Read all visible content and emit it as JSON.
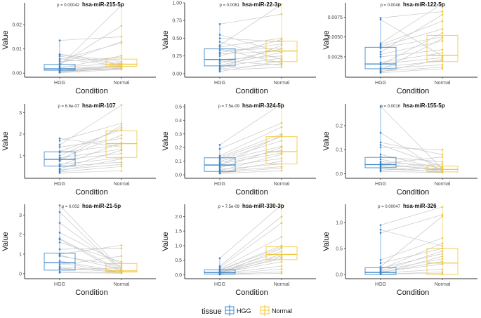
{
  "chart_data": {
    "type": "box",
    "layout": "3x3 faceted paired boxplots",
    "xlabel": "Condition",
    "ylabel": "Value",
    "categories": [
      "HGG",
      "Normal"
    ],
    "legend": {
      "title": "tissue",
      "placement": "bottom",
      "entries": [
        {
          "label": "HGG",
          "color": "#3a85c8"
        },
        {
          "label": "Normal",
          "color": "#f0c83c"
        }
      ]
    },
    "colors": {
      "HGG": "#3a85c8",
      "Normal": "#f0c83c",
      "pair_line": "#c8c8c8",
      "axis": "#333333"
    },
    "panels": [
      {
        "title": "hsa-miR-215-5p",
        "p_label": "p = 0.00042",
        "ylim": [
          -0.0008,
          0.029
        ],
        "yticks": [
          0.0,
          0.01,
          0.02
        ],
        "ytick_labels": [
          "0.00",
          "0.01",
          "0.02"
        ],
        "hgg": {
          "q1": 0.0012,
          "median": 0.0018,
          "q3": 0.0036
        },
        "normal": {
          "q1": 0.0028,
          "median": 0.0037,
          "q3": 0.0058
        },
        "pairs": [
          [
            0.0135,
            0.015
          ],
          [
            0.0078,
            0.0048
          ],
          [
            0.0075,
            0.004
          ],
          [
            0.007,
            0.0035
          ],
          [
            0.006,
            0.003
          ],
          [
            0.0055,
            0.0125
          ],
          [
            0.0048,
            0.0065
          ],
          [
            0.004,
            0.013
          ],
          [
            0.0036,
            0.0195
          ],
          [
            0.003,
            0.028
          ],
          [
            0.0025,
            0.004
          ],
          [
            0.002,
            0.0072
          ],
          [
            0.0018,
            0.003
          ],
          [
            0.0015,
            0.0025
          ],
          [
            0.0012,
            0.002
          ],
          [
            0.001,
            0.0035
          ],
          [
            0.0008,
            0.0018
          ],
          [
            0.0005,
            0.0028
          ],
          [
            0.0003,
            0.0022
          ],
          [
            0.0002,
            0.0015
          ]
        ]
      },
      {
        "title": "hsa-miR-22-3p",
        "p_label": "p = 0.0061",
        "ylim": [
          -0.02,
          1.0
        ],
        "yticks": [
          0,
          0.25,
          0.5,
          0.75,
          1.0
        ],
        "ytick_labels": [
          "0.00",
          "0.25",
          "0.50",
          "0.75",
          "1.00"
        ],
        "hgg": {
          "q1": 0.11,
          "median": 0.2,
          "q3": 0.35
        },
        "normal": {
          "q1": 0.17,
          "median": 0.32,
          "q3": 0.46
        },
        "pairs": [
          [
            0.7,
            0.84
          ],
          [
            0.55,
            0.3
          ],
          [
            0.5,
            0.45
          ],
          [
            0.45,
            0.2
          ],
          [
            0.4,
            0.98
          ],
          [
            0.38,
            0.5
          ],
          [
            0.35,
            0.15
          ],
          [
            0.33,
            0.36
          ],
          [
            0.3,
            0.42
          ],
          [
            0.28,
            0.32
          ],
          [
            0.25,
            0.48
          ],
          [
            0.2,
            0.25
          ],
          [
            0.18,
            0.12
          ],
          [
            0.15,
            0.35
          ],
          [
            0.12,
            0.3
          ],
          [
            0.1,
            0.22
          ],
          [
            0.08,
            0.4
          ],
          [
            0.07,
            0.14
          ],
          [
            0.05,
            0.09
          ],
          [
            0.03,
            0.18
          ]
        ]
      },
      {
        "title": "hsa-miR-122-5p",
        "p_label": "p = 0.0048",
        "ylim": [
          0.0002,
          0.0093
        ],
        "yticks": [
          0.0025,
          0.005,
          0.0075
        ],
        "ytick_labels": [
          "0.0025",
          "0.0050",
          "0.0075"
        ],
        "hgg": {
          "q1": 0.001,
          "median": 0.0016,
          "q3": 0.0037
        },
        "normal": {
          "q1": 0.0019,
          "median": 0.0027,
          "q3": 0.0052
        },
        "pairs": [
          [
            0.0074,
            0.0082
          ],
          [
            0.0072,
            0.0026
          ],
          [
            0.0042,
            0.0092
          ],
          [
            0.004,
            0.007
          ],
          [
            0.0038,
            0.006
          ],
          [
            0.0036,
            0.005
          ],
          [
            0.0031,
            0.0078
          ],
          [
            0.0028,
            0.0045
          ],
          [
            0.0025,
            0.0034
          ],
          [
            0.0018,
            0.003
          ],
          [
            0.0016,
            0.0024
          ],
          [
            0.0015,
            0.0055
          ],
          [
            0.0012,
            0.002
          ],
          [
            0.001,
            0.0015
          ],
          [
            0.0008,
            0.0048
          ],
          [
            0.0007,
            0.0012
          ],
          [
            0.0006,
            0.0022
          ],
          [
            0.0005,
            0.001
          ]
        ]
      },
      {
        "title": "hsa-miR-107",
        "p_label": "p = 6.6e-07",
        "ylim": [
          0.05,
          3.4
        ],
        "yticks": [
          1,
          2,
          3
        ],
        "ytick_labels": [
          "1",
          "2",
          "3"
        ],
        "hgg": {
          "q1": 0.52,
          "median": 0.83,
          "q3": 1.18
        },
        "normal": {
          "q1": 0.92,
          "median": 1.56,
          "q3": 2.15
        },
        "pairs": [
          [
            1.8,
            1.4
          ],
          [
            1.7,
            2.5
          ],
          [
            1.5,
            3.35
          ],
          [
            1.4,
            1.8
          ],
          [
            1.2,
            2.2
          ],
          [
            1.15,
            1.5
          ],
          [
            1.0,
            2.3
          ],
          [
            0.9,
            1.3
          ],
          [
            0.85,
            1.95
          ],
          [
            0.8,
            1.1
          ],
          [
            0.75,
            2.4
          ],
          [
            0.6,
            0.9
          ],
          [
            0.55,
            1.6
          ],
          [
            0.5,
            0.7
          ],
          [
            0.4,
            1.25
          ],
          [
            0.35,
            0.6
          ],
          [
            0.3,
            0.85
          ],
          [
            0.25,
            0.5
          ],
          [
            0.2,
            0.3
          ]
        ]
      },
      {
        "title": "hsa-miR-324-5p",
        "p_label": "p = 7.5e-09",
        "ylim": [
          -0.01,
          0.52
        ],
        "yticks": [
          0,
          0.1,
          0.2,
          0.3,
          0.4,
          0.5
        ],
        "ytick_labels": [
          "0.0",
          "0.1",
          "0.2",
          "0.3",
          "0.4",
          "0.5"
        ],
        "hgg": {
          "q1": 0.025,
          "median": 0.072,
          "q3": 0.125
        },
        "normal": {
          "q1": 0.08,
          "median": 0.17,
          "q3": 0.28
        },
        "pairs": [
          [
            0.22,
            0.52
          ],
          [
            0.19,
            0.38
          ],
          [
            0.14,
            0.35
          ],
          [
            0.13,
            0.3
          ],
          [
            0.12,
            0.28
          ],
          [
            0.11,
            0.25
          ],
          [
            0.1,
            0.21
          ],
          [
            0.09,
            0.18
          ],
          [
            0.08,
            0.16
          ],
          [
            0.07,
            0.29
          ],
          [
            0.06,
            0.12
          ],
          [
            0.05,
            0.2
          ],
          [
            0.04,
            0.08
          ],
          [
            0.03,
            0.15
          ],
          [
            0.025,
            0.06
          ],
          [
            0.02,
            0.1
          ],
          [
            0.015,
            0.05
          ],
          [
            0.01,
            0.03
          ]
        ]
      },
      {
        "title": "hsa-miR-155-5p",
        "p_label": "p = 0.0016",
        "ylim": [
          -0.01,
          0.29
        ],
        "yticks": [
          0,
          0.1,
          0.2
        ],
        "ytick_labels": [
          "0.0",
          "0.1",
          "0.2"
        ],
        "hgg": {
          "q1": 0.025,
          "median": 0.038,
          "q3": 0.068
        },
        "normal": {
          "q1": 0.008,
          "median": 0.018,
          "q3": 0.032
        },
        "pairs": [
          [
            0.28,
            0.02
          ],
          [
            0.17,
            0.01
          ],
          [
            0.13,
            0.08
          ],
          [
            0.12,
            0.03
          ],
          [
            0.11,
            0.1
          ],
          [
            0.08,
            0.02
          ],
          [
            0.07,
            0.05
          ],
          [
            0.06,
            0.015
          ],
          [
            0.05,
            0.03
          ],
          [
            0.045,
            0.01
          ],
          [
            0.04,
            0.07
          ],
          [
            0.035,
            0.02
          ],
          [
            0.03,
            0.005
          ],
          [
            0.025,
            0.04
          ],
          [
            0.02,
            0.01
          ],
          [
            0.015,
            0.025
          ],
          [
            0.01,
            0.005
          ]
        ]
      },
      {
        "title": "hsa-miR-21-5p",
        "p_label": "p = 0.002",
        "ylim": [
          -0.15,
          3.55
        ],
        "yticks": [
          0,
          1,
          2,
          3
        ],
        "ytick_labels": [
          "0",
          "1",
          "2",
          "3"
        ],
        "hgg": {
          "q1": 0.18,
          "median": 0.56,
          "q3": 1.05
        },
        "normal": {
          "q1": 0.08,
          "median": 0.14,
          "q3": 0.52
        },
        "pairs": [
          [
            3.5,
            0.2
          ],
          [
            3.15,
            0.1
          ],
          [
            2.6,
            0.3
          ],
          [
            2.1,
            0.5
          ],
          [
            1.8,
            0.15
          ],
          [
            1.75,
            0.05
          ],
          [
            1.6,
            0.6
          ],
          [
            1.25,
            1.3
          ],
          [
            1.0,
            1.45
          ],
          [
            0.95,
            0.2
          ],
          [
            0.9,
            0.4
          ],
          [
            0.65,
            0.1
          ],
          [
            0.55,
            0.05
          ],
          [
            0.45,
            0.9
          ],
          [
            0.35,
            0.12
          ],
          [
            0.28,
            0.08
          ],
          [
            0.2,
            0.3
          ],
          [
            0.1,
            0.05
          ],
          [
            0.05,
            0.02
          ]
        ]
      },
      {
        "title": "hsa-miR-330-3p",
        "p_label": "p = 7.5e-09",
        "ylim": [
          -0.06,
          2.42
        ],
        "yticks": [
          0,
          0.5,
          1.0,
          1.5,
          2.0
        ],
        "ytick_labels": [
          "0.0",
          "0.5",
          "1.0",
          "1.5",
          "2.0"
        ],
        "hgg": {
          "q1": 0.03,
          "median": 0.08,
          "q3": 0.17
        },
        "normal": {
          "q1": 0.52,
          "median": 0.7,
          "q3": 0.97
        },
        "pairs": [
          [
            0.57,
            2.4
          ],
          [
            0.3,
            2.0
          ],
          [
            0.25,
            1.78
          ],
          [
            0.2,
            1.3
          ],
          [
            0.17,
            1.0
          ],
          [
            0.15,
            0.95
          ],
          [
            0.12,
            0.8
          ],
          [
            0.1,
            0.7
          ],
          [
            0.09,
            0.65
          ],
          [
            0.08,
            0.55
          ],
          [
            0.06,
            0.45
          ],
          [
            0.05,
            0.9
          ],
          [
            0.04,
            0.3
          ],
          [
            0.03,
            0.6
          ],
          [
            0.02,
            0.2
          ],
          [
            0.015,
            0.1
          ],
          [
            0.01,
            0.05
          ]
        ]
      },
      {
        "title": "hsa-miR-326",
        "p_label": "p = 0.00047",
        "ylim": [
          -0.04,
          1.35
        ],
        "yticks": [
          0,
          0.5,
          1.0
        ],
        "ytick_labels": [
          "0.0",
          "0.5",
          "1.0"
        ],
        "hgg": {
          "q1": 0.0,
          "median": 0.04,
          "q3": 0.13
        },
        "normal": {
          "q1": 0.0,
          "median": 0.22,
          "q3": 0.5
        },
        "pairs": [
          [
            0.95,
            1.3
          ],
          [
            0.86,
            0.55
          ],
          [
            0.8,
            1.15
          ],
          [
            0.28,
            0.7
          ],
          [
            0.22,
            0.5
          ],
          [
            0.15,
            1.12
          ],
          [
            0.12,
            0.4
          ],
          [
            0.1,
            0.6
          ],
          [
            0.08,
            0.3
          ],
          [
            0.06,
            0.45
          ],
          [
            0.05,
            0.2
          ],
          [
            0.04,
            0.25
          ],
          [
            0.03,
            0.1
          ],
          [
            0.02,
            0.35
          ],
          [
            0.01,
            0.02
          ],
          [
            0.005,
            0.05
          ]
        ]
      }
    ]
  }
}
